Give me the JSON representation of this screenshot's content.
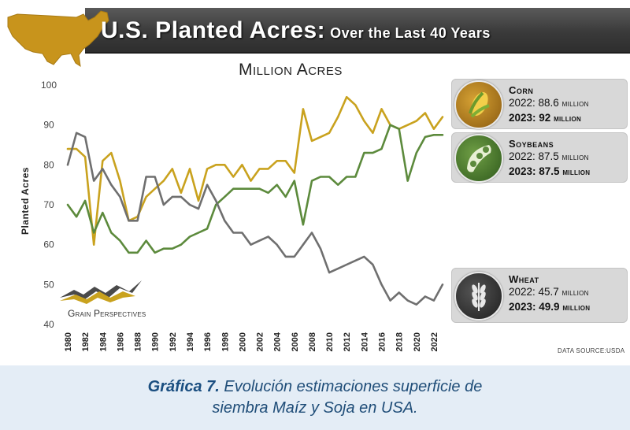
{
  "header": {
    "title": "U.S. Planted Acres:",
    "title_suffix": "Over the Last 40 Years"
  },
  "colors": {
    "corn": "#c9a21e",
    "soybeans": "#5c8a3c",
    "wheat": "#6f6f6f",
    "title_band": "#3e3e3e",
    "map": "#c8941c",
    "caption_text": "#1f4d78",
    "caption_bg": "#e4edf6"
  },
  "chart_data": {
    "type": "line",
    "title": "Million Acres",
    "xlabel": "",
    "ylabel": "Planted Acres",
    "ylim": [
      40,
      100
    ],
    "yticks": [
      40,
      50,
      60,
      70,
      80,
      90,
      100
    ],
    "xticks": [
      "1980",
      "1982",
      "1984",
      "1986",
      "1988",
      "1990",
      "1992",
      "1994",
      "1996",
      "1998",
      "2000",
      "2002",
      "2004",
      "2006",
      "2008",
      "2010",
      "2012",
      "2014",
      "2016",
      "2018",
      "2020",
      "2022"
    ],
    "x": [
      1980,
      1981,
      1982,
      1983,
      1984,
      1985,
      1986,
      1987,
      1988,
      1989,
      1990,
      1991,
      1992,
      1993,
      1994,
      1995,
      1996,
      1997,
      1998,
      1999,
      2000,
      2001,
      2002,
      2003,
      2004,
      2005,
      2006,
      2007,
      2008,
      2009,
      2010,
      2011,
      2012,
      2013,
      2014,
      2015,
      2016,
      2017,
      2018,
      2019,
      2020,
      2021,
      2022,
      2023
    ],
    "grid": false,
    "legend_placement": "right",
    "series": [
      {
        "name": "Corn",
        "color": "#c9a21e",
        "values": [
          84,
          84,
          82,
          60,
          81,
          83,
          76,
          66,
          67,
          72,
          74,
          76,
          79,
          73,
          79,
          71,
          79,
          80,
          80,
          77,
          80,
          76,
          79,
          79,
          81,
          81,
          78,
          94,
          86,
          87,
          88,
          92,
          97,
          95,
          91,
          88,
          94,
          90,
          89,
          90,
          91,
          93,
          89,
          92
        ]
      },
      {
        "name": "Soybeans",
        "color": "#5c8a3c",
        "values": [
          70,
          67,
          71,
          63,
          68,
          63,
          61,
          58,
          58,
          61,
          58,
          59,
          59,
          60,
          62,
          63,
          64,
          70,
          72,
          74,
          74,
          74,
          74,
          73,
          75,
          72,
          76,
          65,
          76,
          77,
          77,
          75,
          77,
          77,
          83,
          83,
          84,
          90,
          89,
          76,
          83,
          87,
          87.5,
          87.5
        ]
      },
      {
        "name": "Wheat",
        "color": "#6f6f6f",
        "values": [
          80,
          88,
          87,
          76,
          79,
          75,
          72,
          66,
          66,
          77,
          77,
          70,
          72,
          72,
          70,
          69,
          75,
          71,
          66,
          63,
          63,
          60,
          61,
          62,
          60,
          57,
          57,
          60,
          63,
          59,
          53,
          54,
          55,
          56,
          57,
          55,
          50,
          46,
          48,
          46,
          45,
          47,
          46,
          50
        ]
      }
    ],
    "legend": [
      {
        "name": "Corn",
        "line1_value": "2022: 88.6",
        "line1_unit": "million",
        "line2_value": "2023: 92",
        "line2_unit": "million"
      },
      {
        "name": "Soybeans",
        "line1_value": "2022: 87.5",
        "line1_unit": "million",
        "line2_value": "2023: 87.5",
        "line2_unit": "million"
      },
      {
        "name": "Wheat",
        "line1_value": "2022: 45.7",
        "line1_unit": "million",
        "line2_value": "2023: 49.9",
        "line2_unit": "million"
      }
    ]
  },
  "logo_text": "Grain Perspectives",
  "data_source": "DATA SOURCE:USDA",
  "caption": {
    "label": "Gráfica 7.",
    "line1_rest": " Evolución estimaciones superficie de",
    "line2": "siembra Maíz y Soja en USA."
  }
}
